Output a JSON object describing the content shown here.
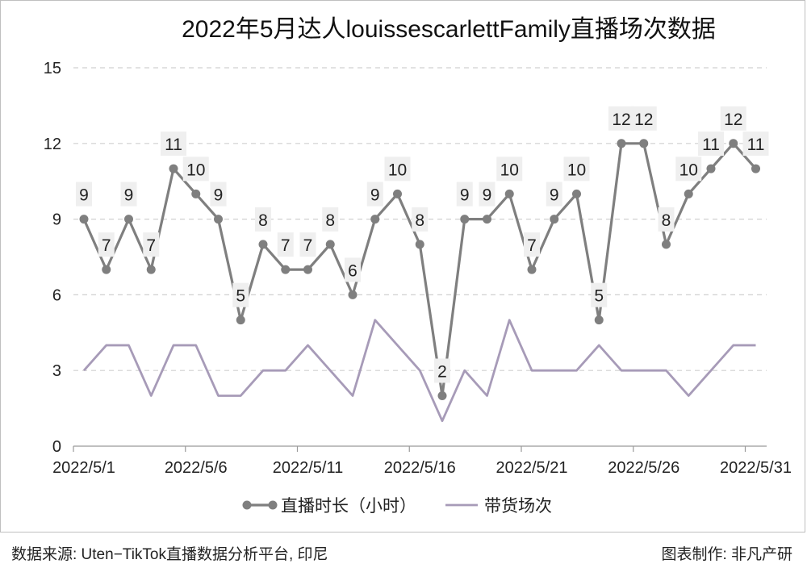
{
  "chart_data": {
    "type": "line",
    "title": "2022年5月达人louissescarlettFamily直播场次数据",
    "x": [
      "2022/5/1",
      "2022/5/2",
      "2022/5/3",
      "2022/5/4",
      "2022/5/5",
      "2022/5/6",
      "2022/5/7",
      "2022/5/8",
      "2022/5/9",
      "2022/5/10",
      "2022/5/11",
      "2022/5/12",
      "2022/5/13",
      "2022/5/14",
      "2022/5/15",
      "2022/5/16",
      "2022/5/17",
      "2022/5/18",
      "2022/5/19",
      "2022/5/20",
      "2022/5/21",
      "2022/5/22",
      "2022/5/23",
      "2022/5/24",
      "2022/5/25",
      "2022/5/26",
      "2022/5/27",
      "2022/5/28",
      "2022/5/29",
      "2022/5/30",
      "2022/5/31"
    ],
    "x_tick_labels": [
      "2022/5/1",
      "2022/5/6",
      "2022/5/11",
      "2022/5/16",
      "2022/5/21",
      "2022/5/26",
      "2022/5/31"
    ],
    "ylim": [
      0,
      15
    ],
    "y_ticks": [
      "0",
      "3",
      "6",
      "9",
      "12",
      "15"
    ],
    "grid": "horizontal dashed",
    "legend_position": "bottom",
    "series": [
      {
        "name": "直播时长（小时）",
        "color": "#7f7f7f",
        "marker": "circle",
        "data_labels": true,
        "values": [
          9,
          7,
          9,
          7,
          11,
          10,
          9,
          5,
          8,
          7,
          7,
          8,
          6,
          9,
          10,
          8,
          2,
          9,
          9,
          10,
          7,
          9,
          10,
          5,
          12,
          12,
          8,
          10,
          11,
          12,
          11
        ]
      },
      {
        "name": "带货场次",
        "color": "#a79bb8",
        "marker": "none",
        "data_labels": false,
        "values": [
          3,
          4,
          4,
          2,
          4,
          4,
          2,
          2,
          3,
          3,
          4,
          3,
          2,
          5,
          4,
          3,
          1,
          3,
          2,
          5,
          3,
          3,
          3,
          4,
          3,
          3,
          3,
          2,
          3,
          4,
          4
        ]
      }
    ]
  },
  "footer": {
    "source": "数据来源: Uten−TikTok直播数据分析平台, 印尼",
    "credit": "图表制作: 非凡产研"
  }
}
